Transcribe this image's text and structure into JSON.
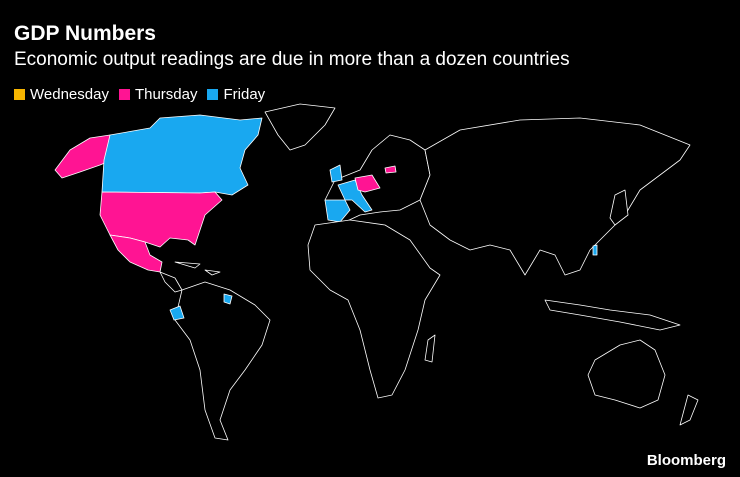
{
  "header": {
    "title": "GDP Numbers",
    "subtitle": "Economic output readings are due in more than a dozen countries"
  },
  "legend": [
    {
      "label": "Wednesday",
      "color": "#f7b500"
    },
    {
      "label": "Thursday",
      "color": "#ff1493"
    },
    {
      "label": "Friday",
      "color": "#19a8f0"
    }
  ],
  "source": "Bloomberg"
}
